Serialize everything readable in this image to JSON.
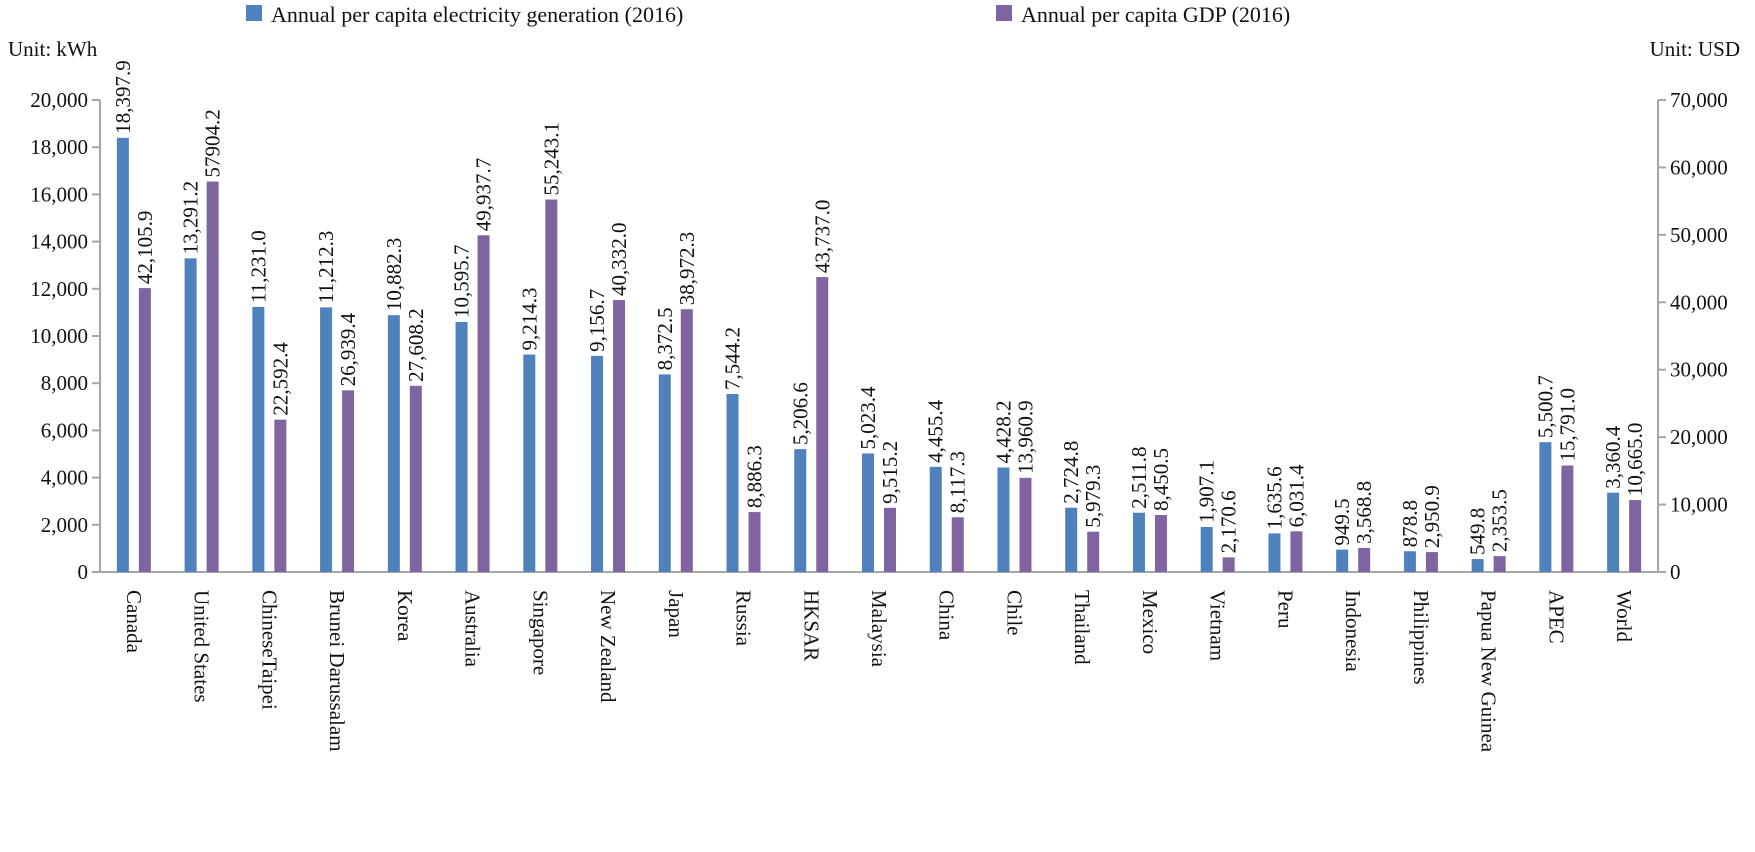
{
  "chart_data": {
    "type": "bar",
    "categories": [
      "Canada",
      "United States",
      "ChineseTaipei",
      "Brunei Darussalam",
      "Korea",
      "Australia",
      "Singapore",
      "New Zealand",
      "Japan",
      "Russia",
      "HKSAR",
      "Malaysia",
      "China",
      "Chile",
      "Thailand",
      "Mexico",
      "Vietnam",
      "Peru",
      "Indonesia",
      "Philippines",
      "Papua New Guinea",
      "APEC",
      "World"
    ],
    "series": [
      {
        "name": "Annual per capita electricity generation (2016)",
        "axis": "left",
        "color": "#4f81bd",
        "values": [
          18397.9,
          13291.2,
          11231.0,
          11212.3,
          10882.3,
          10595.7,
          9214.3,
          9156.7,
          8372.5,
          7544.2,
          5206.6,
          5023.4,
          4455.4,
          4428.2,
          2724.8,
          2511.8,
          1907.1,
          1635.6,
          949.5,
          878.8,
          549.8,
          5500.7,
          3360.4
        ],
        "labels": [
          "18,397.9",
          "13,291.2",
          "11,231.0",
          "11,212.3",
          "10,882.3",
          "10,595.7",
          "9,214.3",
          "9,156.7",
          "8,372.5",
          "7,544.2",
          "5,206.6",
          "5,023.4",
          "4,455.4",
          "4,428.2",
          "2,724.8",
          "2,511.8",
          "1,907.1",
          "1,635.6",
          "949.5",
          "878.8",
          "549.8",
          "5,500.7",
          "3,360.4"
        ]
      },
      {
        "name": "Annual per capita GDP (2016)",
        "axis": "right",
        "color": "#8064a2",
        "values": [
          42105.9,
          57904.2,
          22592.4,
          26939.4,
          27608.2,
          49937.7,
          55243.1,
          40332.0,
          38972.3,
          8886.3,
          43737.0,
          9515.2,
          8117.3,
          13960.9,
          5979.3,
          8450.5,
          2170.6,
          6031.4,
          3568.8,
          2950.9,
          2353.5,
          15791.0,
          10665.0
        ],
        "labels": [
          "42,105.9",
          "57904.2",
          "22,592.4",
          "26,939.4",
          "27,608.2",
          "49,937.7",
          "55,243.1",
          "40,332.0",
          "38,972.3",
          "8,886.3",
          "43,737.0",
          "9,515.2",
          "8,117.3",
          "13,960.9",
          "5,979.3",
          "8,450.5",
          "2,170.6",
          "6,031.4",
          "3,568.8",
          "2,950.9",
          "2,353.5",
          "15,791.0",
          "10,665.0"
        ]
      }
    ],
    "highlight_categories": [
      "APEC",
      "World"
    ],
    "highlight_label_color": "#c0392b",
    "normal_label_color": "#111111",
    "left_axis": {
      "unit_label": "Unit:  kWh",
      "min": 0,
      "max": 20000,
      "step": 2000,
      "tick_labels": [
        "0",
        "2,000",
        "4,000",
        "6,000",
        "8,000",
        "10,000",
        "12,000",
        "14,000",
        "16,000",
        "18,000",
        "20,000"
      ]
    },
    "right_axis": {
      "unit_label": "Unit:  USD",
      "min": 0,
      "max": 70000,
      "step": 10000,
      "tick_labels": [
        "0",
        "10,000",
        "20,000",
        "30,000",
        "40,000",
        "50,000",
        "60,000",
        "70,000"
      ]
    },
    "legend_position": "top",
    "grid": false
  }
}
